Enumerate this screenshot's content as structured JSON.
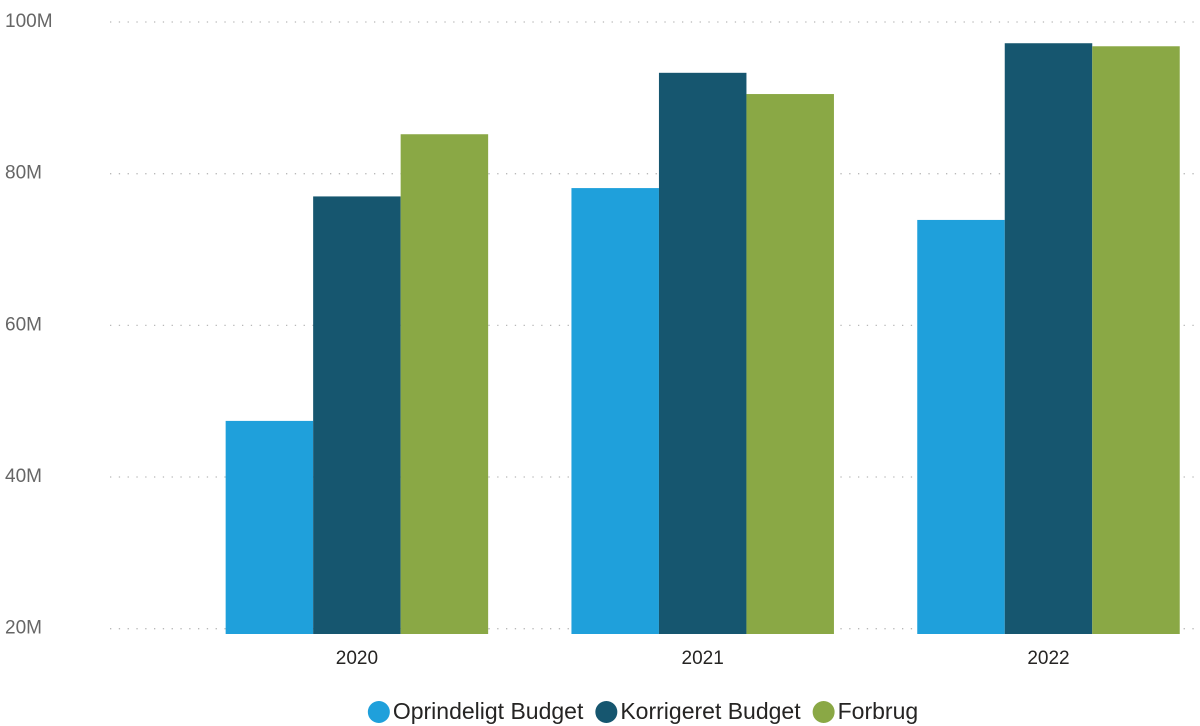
{
  "chart_data": {
    "type": "bar",
    "categories": [
      "2020",
      "2021",
      "2022"
    ],
    "series": [
      {
        "name": "Oprindeligt Budget",
        "color": "#1fa0db",
        "values": [
          47400000,
          78100000,
          73900000
        ]
      },
      {
        "name": "Korrigeret Budget",
        "color": "#16566f",
        "values": [
          77000000,
          93300000,
          97200000
        ]
      },
      {
        "name": "Forbrug",
        "color": "#8aa845",
        "values": [
          85200000,
          90500000,
          96800000
        ]
      }
    ],
    "ylim": [
      19300000,
      100000000
    ],
    "yticks": [
      {
        "value": 20000000,
        "label": "20M"
      },
      {
        "value": 40000000,
        "label": "40M"
      },
      {
        "value": 60000000,
        "label": "60M"
      },
      {
        "value": 80000000,
        "label": "80M"
      },
      {
        "value": 100000000,
        "label": "100M"
      }
    ],
    "grid": true,
    "legend": "bottom"
  }
}
